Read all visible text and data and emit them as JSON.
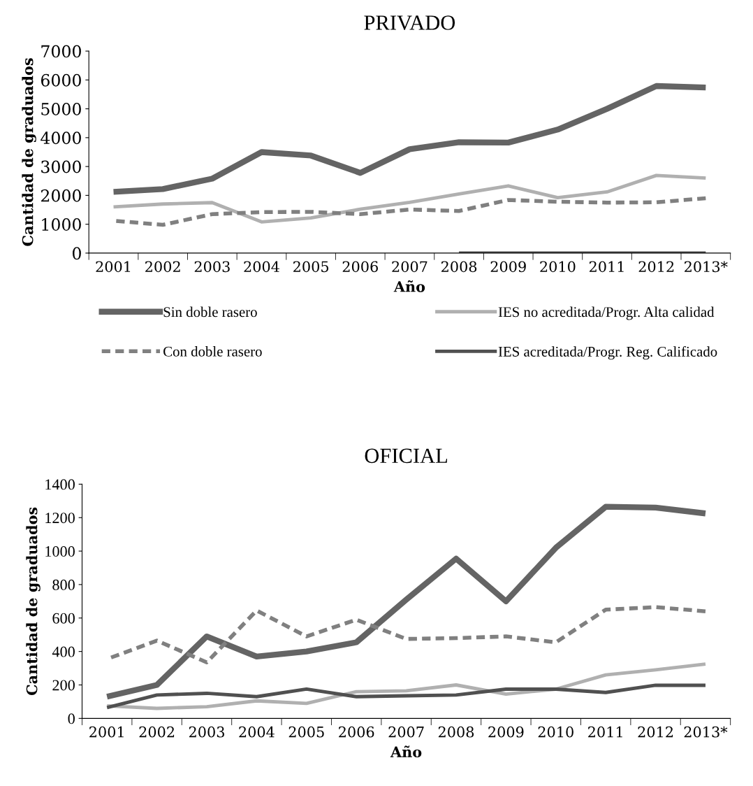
{
  "chart_data": [
    {
      "type": "line",
      "title": "PRIVADO",
      "xlabel": "Año",
      "ylabel": "Cantidad de graduados",
      "categories": [
        "2001",
        "2002",
        "2003",
        "2004",
        "2005",
        "2006",
        "2007",
        "2008",
        "2009",
        "2010",
        "2011",
        "2012",
        "2013*"
      ],
      "ylim": [
        0,
        7000
      ],
      "yticks": [
        0,
        1000,
        2000,
        3000,
        4000,
        5000,
        6000,
        7000
      ],
      "legend": "bottom",
      "grid": false,
      "marker": "none",
      "series": [
        {
          "name": "Sin doble rasero",
          "color": "#646464",
          "line_style": "solid",
          "values": [
            2120,
            2220,
            2580,
            3500,
            3380,
            2780,
            3600,
            3840,
            3830,
            4280,
            5000,
            5790,
            5740
          ]
        },
        {
          "name": "IES no acreditada/Progr. Alta calidad",
          "color": "#b0b0b0",
          "line_style": "solid",
          "values": [
            1600,
            1700,
            1750,
            1080,
            1220,
            1520,
            1760,
            2050,
            2330,
            1920,
            2120,
            2690,
            2600
          ]
        },
        {
          "name": "Con doble rasero",
          "color": "#808080",
          "line_style": "dashed",
          "values": [
            1120,
            980,
            1350,
            1420,
            1430,
            1350,
            1510,
            1460,
            1840,
            1780,
            1750,
            1760,
            1900
          ]
        },
        {
          "name": "IES acreditada/Progr. Reg. Calificado",
          "color": "#505050",
          "line_style": "solid",
          "values": [
            null,
            null,
            null,
            null,
            null,
            null,
            null,
            0,
            0,
            0,
            0,
            0,
            0
          ]
        }
      ]
    },
    {
      "type": "line",
      "title": "OFICIAL",
      "xlabel": "Año",
      "ylabel": "Cantidad de graduados",
      "categories": [
        "2001",
        "2002",
        "2003",
        "2004",
        "2005",
        "2006",
        "2007",
        "2008",
        "2009",
        "2010",
        "2011",
        "2012",
        "2013*"
      ],
      "ylim": [
        0,
        1400
      ],
      "yticks": [
        0,
        200,
        400,
        600,
        800,
        1000,
        1200,
        1400
      ],
      "legend": false,
      "grid": false,
      "marker": "none",
      "series": [
        {
          "color": "#646464",
          "line_style": "solid",
          "values": [
            130,
            200,
            490,
            370,
            400,
            455,
            710,
            955,
            700,
            1020,
            1265,
            1260,
            1225
          ]
        },
        {
          "color": "#b0b0b0",
          "line_style": "solid",
          "values": [
            75,
            60,
            70,
            105,
            90,
            160,
            165,
            200,
            145,
            175,
            260,
            290,
            325
          ]
        },
        {
          "color": "#808080",
          "line_style": "dashed",
          "values": [
            355,
            465,
            335,
            645,
            490,
            590,
            475,
            480,
            490,
            455,
            650,
            665,
            640
          ]
        },
        {
          "color": "#505050",
          "line_style": "solid",
          "values": [
            65,
            140,
            150,
            130,
            175,
            130,
            135,
            140,
            175,
            175,
            155,
            198,
            198
          ]
        }
      ]
    }
  ]
}
